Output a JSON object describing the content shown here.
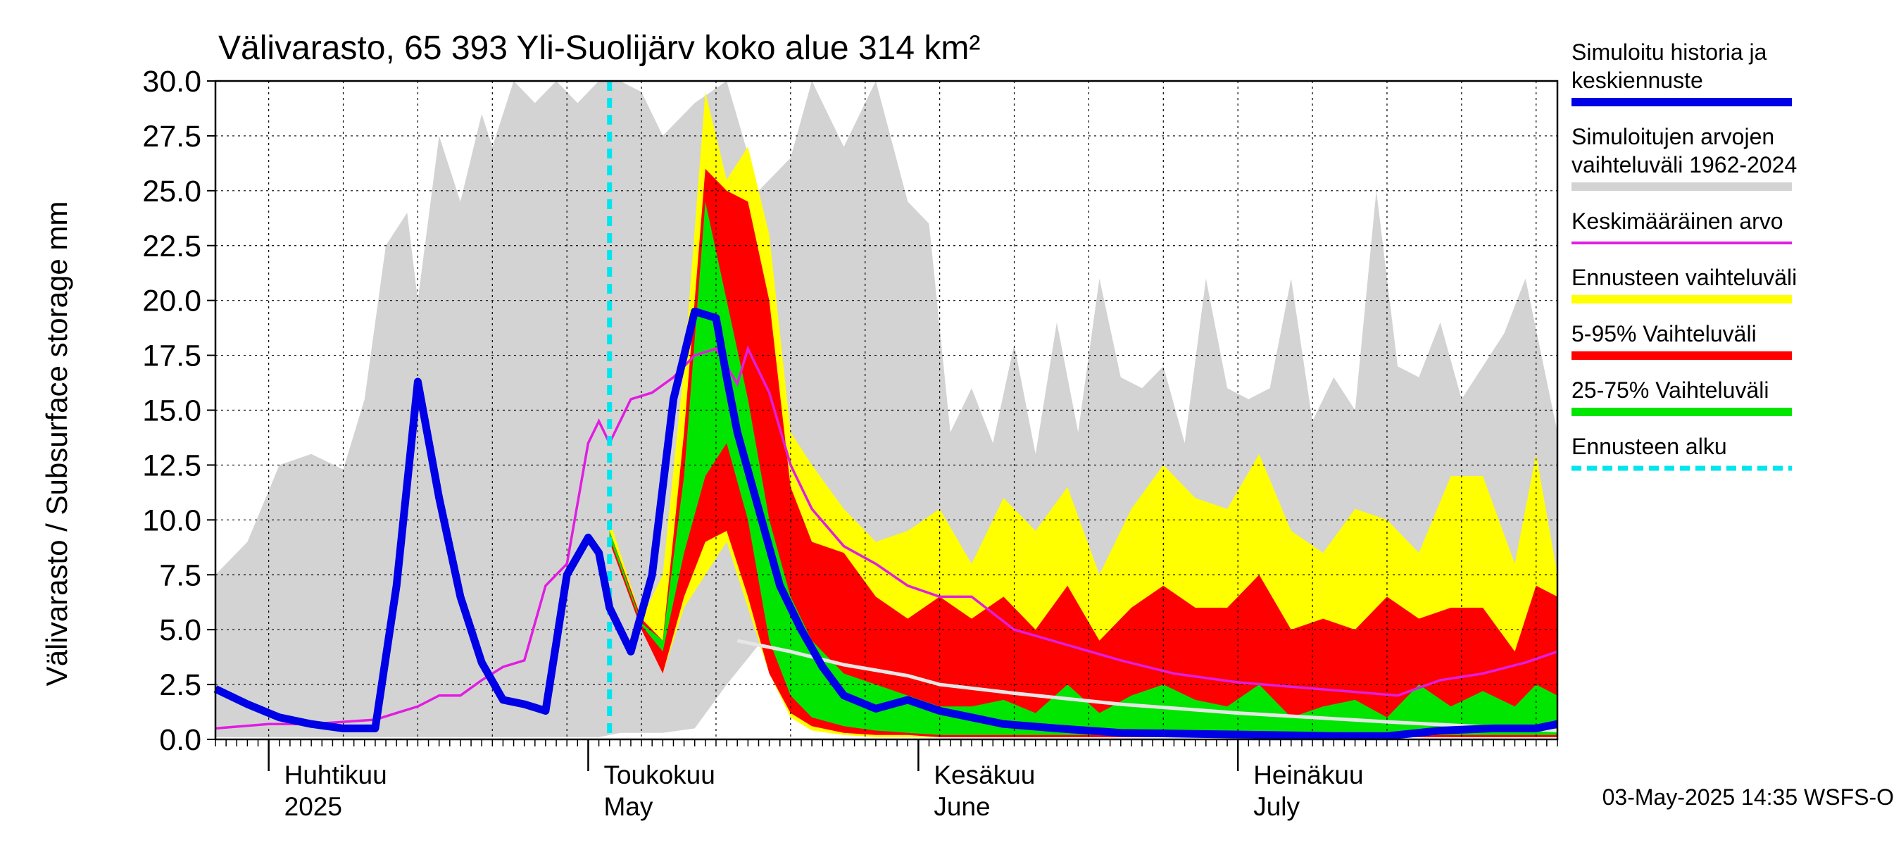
{
  "chart_data": {
    "type": "area",
    "title": "Välivarasto, 65 393 Yli-Suolijärv koko alue 314 km²",
    "ylabel": "Välivarasto / Subsurface storage  mm",
    "ylim": [
      0,
      30
    ],
    "yticks": [
      "0.0",
      "2.5",
      "5.0",
      "7.5",
      "10.0",
      "12.5",
      "15.0",
      "17.5",
      "20.0",
      "22.5",
      "25.0",
      "27.5",
      "30.0"
    ],
    "x_start": "2025-03-27",
    "x_end": "2025-07-31",
    "forecast_start": "2025-05-03",
    "grid": true,
    "months": [
      {
        "date": "2025-04-01",
        "fi": "Huhtikuu",
        "en": "2025"
      },
      {
        "date": "2025-05-01",
        "fi": "Toukokuu",
        "en": "May"
      },
      {
        "date": "2025-06-01",
        "fi": "Kesäkuu",
        "en": "June"
      },
      {
        "date": "2025-07-01",
        "fi": "Heinäkuu",
        "en": "July"
      }
    ],
    "legend_placement": "right",
    "legend": [
      {
        "line1": "Simuloitu historia ja",
        "line2": "keskiennuste",
        "color": "#0000e6",
        "style": "thick"
      },
      {
        "line1": "Simuloitujen arvojen",
        "line2": "vaihteluväli 1962-2024",
        "color": "#d3d3d3",
        "style": "thick"
      },
      {
        "line1": "Keskimääräinen arvo",
        "line2": "",
        "color": "#e01ee0",
        "style": "thin"
      },
      {
        "line1": "Ennusteen vaihteluväli",
        "line2": "",
        "color": "#ffff00",
        "style": "thick"
      },
      {
        "line1": "5-95% Vaihteluväli",
        "line2": "",
        "color": "#ff0000",
        "style": "thick"
      },
      {
        "line1": "25-75% Vaihteluväli",
        "line2": "",
        "color": "#00e600",
        "style": "thick"
      },
      {
        "line1": "Ennusteen alku",
        "line2": "",
        "color": "#00e5ee",
        "style": "dashed"
      }
    ],
    "series": {
      "history_range": {
        "x": [
          "2025-03-27",
          "2025-03-30",
          "2025-04-02",
          "2025-04-05",
          "2025-04-08",
          "2025-04-10",
          "2025-04-12",
          "2025-04-14",
          "2025-04-15",
          "2025-04-17",
          "2025-04-19",
          "2025-04-21",
          "2025-04-22",
          "2025-04-24",
          "2025-04-26",
          "2025-04-28",
          "2025-04-30",
          "2025-05-02",
          "2025-05-04",
          "2025-05-06",
          "2025-05-08",
          "2025-05-11",
          "2025-05-14",
          "2025-05-17",
          "2025-05-20",
          "2025-05-22",
          "2025-05-25",
          "2025-05-28",
          "2025-05-31",
          "2025-06-02",
          "2025-06-04",
          "2025-06-06",
          "2025-06-08",
          "2025-06-10",
          "2025-06-12",
          "2025-06-14",
          "2025-06-16",
          "2025-06-18",
          "2025-06-20",
          "2025-06-22",
          "2025-06-24",
          "2025-06-26",
          "2025-06-28",
          "2025-06-30",
          "2025-07-02",
          "2025-07-04",
          "2025-07-06",
          "2025-07-08",
          "2025-07-10",
          "2025-07-12",
          "2025-07-14",
          "2025-07-16",
          "2025-07-18",
          "2025-07-20",
          "2025-07-22",
          "2025-07-24",
          "2025-07-26",
          "2025-07-28",
          "2025-07-31"
        ],
        "low": [
          0.1,
          0.1,
          0.1,
          0.1,
          0.1,
          0.1,
          0.1,
          0.1,
          0.1,
          0.1,
          0.1,
          0.1,
          0.1,
          0.1,
          0.1,
          0.1,
          0.1,
          0.1,
          0.3,
          0.3,
          0.3,
          0.5,
          2.5,
          4.3,
          2.2,
          1.0,
          0.4,
          0.1,
          0.1,
          0.1,
          0.1,
          0.1,
          0.1,
          0.1,
          0.1,
          0.1,
          0.1,
          0.1,
          0.1,
          0.1,
          0.1,
          0.1,
          0.1,
          0.1,
          0.1,
          0.1,
          0.1,
          0.1,
          0.1,
          0.1,
          0.1,
          0.1,
          0.1,
          0.1,
          0.1,
          0.1,
          0.1,
          0.1,
          0.1
        ],
        "high": [
          7.5,
          9.0,
          12.5,
          13.0,
          12.3,
          15.5,
          22.5,
          24.0,
          20.0,
          27.5,
          24.5,
          28.5,
          27.0,
          30.0,
          29.0,
          30.0,
          29.0,
          30.0,
          30.0,
          29.5,
          27.5,
          29.0,
          30.0,
          25.0,
          26.5,
          30.0,
          27.0,
          30.0,
          24.5,
          23.5,
          14.0,
          16.0,
          13.5,
          18.0,
          13.0,
          19.0,
          14.0,
          21.0,
          16.5,
          16.0,
          17.0,
          13.5,
          21.0,
          16.0,
          15.5,
          16.0,
          21.0,
          14.5,
          16.5,
          15.0,
          25.0,
          17.0,
          16.5,
          19.0,
          15.5,
          17.0,
          18.5,
          21.0,
          14.0
        ]
      },
      "forecast_range": {
        "x": [
          "2025-05-03",
          "2025-05-06",
          "2025-05-08",
          "2025-05-10",
          "2025-05-12",
          "2025-05-14",
          "2025-05-16",
          "2025-05-18",
          "2025-05-20",
          "2025-05-22",
          "2025-05-25",
          "2025-05-28",
          "2025-05-31",
          "2025-06-03",
          "2025-06-06",
          "2025-06-09",
          "2025-06-12",
          "2025-06-15",
          "2025-06-18",
          "2025-06-21",
          "2025-06-24",
          "2025-06-27",
          "2025-06-30",
          "2025-07-03",
          "2025-07-06",
          "2025-07-09",
          "2025-07-12",
          "2025-07-15",
          "2025-07-18",
          "2025-07-21",
          "2025-07-24",
          "2025-07-27",
          "2025-07-29",
          "2025-07-31"
        ],
        "low": [
          9.0,
          5.5,
          3.0,
          6.0,
          7.5,
          9.0,
          6.0,
          3.0,
          1.0,
          0.4,
          0.2,
          0.1,
          0.1,
          0.1,
          0.1,
          0.1,
          0.1,
          0.1,
          0.1,
          0.1,
          0.1,
          0.1,
          0.1,
          0.1,
          0.1,
          0.1,
          0.1,
          0.1,
          0.1,
          0.1,
          0.1,
          0.1,
          0.1,
          0.1
        ],
        "high": [
          10.0,
          5.5,
          7.5,
          17.0,
          29.5,
          25.5,
          27.0,
          23.0,
          14.0,
          12.5,
          10.5,
          9.0,
          9.5,
          10.5,
          8.0,
          11.0,
          9.5,
          11.5,
          7.5,
          10.5,
          12.5,
          11.0,
          10.5,
          13.0,
          9.5,
          8.5,
          10.5,
          10.0,
          8.5,
          12.0,
          12.0,
          8.0,
          13.0,
          7.5
        ]
      },
      "p5_95": {
        "x": [
          "2025-05-03",
          "2025-05-06",
          "2025-05-08",
          "2025-05-10",
          "2025-05-12",
          "2025-05-14",
          "2025-05-16",
          "2025-05-18",
          "2025-05-20",
          "2025-05-22",
          "2025-05-25",
          "2025-05-28",
          "2025-05-31",
          "2025-06-03",
          "2025-06-06",
          "2025-06-09",
          "2025-06-12",
          "2025-06-15",
          "2025-06-18",
          "2025-06-21",
          "2025-06-24",
          "2025-06-27",
          "2025-06-30",
          "2025-07-03",
          "2025-07-06",
          "2025-07-09",
          "2025-07-12",
          "2025-07-15",
          "2025-07-18",
          "2025-07-21",
          "2025-07-24",
          "2025-07-27",
          "2025-07-29",
          "2025-07-31"
        ],
        "low": [
          9.0,
          5.0,
          3.0,
          6.5,
          9.0,
          9.5,
          6.5,
          3.0,
          1.2,
          0.6,
          0.3,
          0.2,
          0.2,
          0.1,
          0.1,
          0.1,
          0.1,
          0.1,
          0.1,
          0.1,
          0.1,
          0.1,
          0.1,
          0.1,
          0.1,
          0.1,
          0.1,
          0.1,
          0.1,
          0.1,
          0.1,
          0.1,
          0.1,
          0.1
        ],
        "high": [
          9.5,
          5.5,
          4.5,
          14.0,
          26.0,
          25.0,
          24.5,
          20.0,
          11.5,
          9.0,
          8.5,
          6.5,
          5.5,
          6.5,
          5.5,
          6.5,
          5.0,
          7.0,
          4.5,
          6.0,
          7.0,
          6.0,
          6.0,
          7.5,
          5.0,
          5.5,
          5.0,
          6.5,
          5.5,
          6.0,
          6.0,
          4.0,
          7.0,
          6.5
        ]
      },
      "p25_75": {
        "x": [
          "2025-05-03",
          "2025-05-06",
          "2025-05-08",
          "2025-05-10",
          "2025-05-12",
          "2025-05-14",
          "2025-05-16",
          "2025-05-18",
          "2025-05-20",
          "2025-05-22",
          "2025-05-25",
          "2025-05-28",
          "2025-05-31",
          "2025-06-03",
          "2025-06-06",
          "2025-06-09",
          "2025-06-12",
          "2025-06-15",
          "2025-06-18",
          "2025-06-21",
          "2025-06-24",
          "2025-06-27",
          "2025-06-30",
          "2025-07-03",
          "2025-07-06",
          "2025-07-09",
          "2025-07-12",
          "2025-07-15",
          "2025-07-18",
          "2025-07-21",
          "2025-07-24",
          "2025-07-27",
          "2025-07-29",
          "2025-07-31"
        ],
        "low": [
          9.2,
          5.2,
          4.0,
          8.5,
          12.0,
          13.5,
          10.0,
          4.5,
          2.0,
          1.0,
          0.6,
          0.4,
          0.3,
          0.2,
          0.2,
          0.2,
          0.2,
          0.2,
          0.2,
          0.2,
          0.2,
          0.2,
          0.2,
          0.2,
          0.2,
          0.2,
          0.2,
          0.2,
          0.2,
          0.2,
          0.2,
          0.2,
          0.2,
          0.2
        ],
        "high": [
          9.5,
          5.3,
          4.5,
          12.0,
          24.5,
          20.0,
          15.5,
          10.0,
          6.5,
          4.5,
          3.0,
          2.5,
          2.0,
          1.5,
          1.5,
          1.8,
          1.2,
          2.5,
          1.2,
          2.0,
          2.5,
          1.8,
          1.5,
          2.5,
          1.0,
          1.5,
          1.8,
          1.0,
          2.5,
          1.5,
          2.2,
          1.5,
          2.5,
          2.0
        ]
      },
      "mean": {
        "x": [
          "2025-03-27",
          "2025-04-01",
          "2025-04-05",
          "2025-04-08",
          "2025-04-11",
          "2025-04-13",
          "2025-04-15",
          "2025-04-17",
          "2025-04-19",
          "2025-04-21",
          "2025-04-23",
          "2025-04-25",
          "2025-04-27",
          "2025-04-29",
          "2025-05-01",
          "2025-05-02",
          "2025-05-03",
          "2025-05-05",
          "2025-05-07",
          "2025-05-09",
          "2025-05-11",
          "2025-05-13",
          "2025-05-15",
          "2025-05-16",
          "2025-05-18",
          "2025-05-20",
          "2025-05-22",
          "2025-05-25",
          "2025-05-28",
          "2025-05-31",
          "2025-06-03",
          "2025-06-06",
          "2025-06-10",
          "2025-06-15",
          "2025-06-20",
          "2025-06-25",
          "2025-07-01",
          "2025-07-06",
          "2025-07-11",
          "2025-07-16",
          "2025-07-20",
          "2025-07-24",
          "2025-07-28",
          "2025-07-31"
        ],
        "values": [
          0.5,
          0.7,
          0.7,
          0.8,
          0.9,
          1.2,
          1.5,
          2.0,
          2.0,
          2.7,
          3.3,
          3.6,
          7.0,
          8.0,
          13.5,
          14.5,
          13.5,
          15.5,
          15.8,
          16.5,
          17.5,
          17.8,
          16.2,
          17.8,
          15.8,
          12.5,
          10.5,
          8.8,
          8.0,
          7.0,
          6.5,
          6.5,
          5.0,
          4.3,
          3.6,
          3.0,
          2.6,
          2.4,
          2.2,
          2.0,
          2.7,
          3.0,
          3.5,
          4.0
        ]
      },
      "forecast_mean_light": {
        "x": [
          "2025-05-15",
          "2025-05-20",
          "2025-05-25",
          "2025-05-31",
          "2025-06-03",
          "2025-06-10",
          "2025-06-20",
          "2025-07-01",
          "2025-07-15",
          "2025-07-31"
        ],
        "values": [
          4.5,
          4.0,
          3.4,
          2.9,
          2.5,
          2.1,
          1.6,
          1.2,
          0.8,
          0.4
        ]
      },
      "history_mean": {
        "x": [
          "2025-03-27",
          "2025-03-30",
          "2025-04-02",
          "2025-04-05",
          "2025-04-08",
          "2025-04-11",
          "2025-04-13",
          "2025-04-15",
          "2025-04-17",
          "2025-04-19",
          "2025-04-21",
          "2025-04-23",
          "2025-04-25",
          "2025-04-27",
          "2025-04-29",
          "2025-05-01",
          "2025-05-02",
          "2025-05-03",
          "2025-05-05",
          "2025-05-07",
          "2025-05-09",
          "2025-05-11",
          "2025-05-13",
          "2025-05-14",
          "2025-05-15",
          "2025-05-17",
          "2025-05-19",
          "2025-05-21",
          "2025-05-23",
          "2025-05-25",
          "2025-05-28",
          "2025-05-31",
          "2025-06-03",
          "2025-06-06",
          "2025-06-09",
          "2025-06-14",
          "2025-06-20",
          "2025-06-27",
          "2025-07-04",
          "2025-07-10",
          "2025-07-15",
          "2025-07-20",
          "2025-07-25",
          "2025-07-29",
          "2025-07-31"
        ],
        "values": [
          2.3,
          1.6,
          1.0,
          0.7,
          0.5,
          0.5,
          7.0,
          16.3,
          11.0,
          6.5,
          3.5,
          1.8,
          1.6,
          1.3,
          7.5,
          9.2,
          8.5,
          6.0,
          4.0,
          7.5,
          15.5,
          19.5,
          19.2,
          16.5,
          14.0,
          10.5,
          7.0,
          5.0,
          3.3,
          2.0,
          1.4,
          1.8,
          1.3,
          1.0,
          0.7,
          0.5,
          0.3,
          0.25,
          0.2,
          0.15,
          0.15,
          0.4,
          0.5,
          0.5,
          0.7
        ]
      }
    }
  },
  "footer": "03-May-2025 14:35 WSFS-O"
}
